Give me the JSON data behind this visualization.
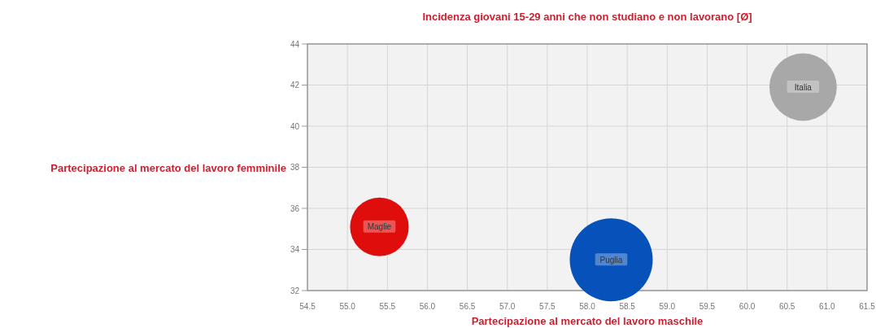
{
  "chart_data": {
    "type": "bubble",
    "title": "Incidenza giovani 15-29 anni che non studiano e non lavorano [Ø]",
    "xlabel": "Partecipazione al mercato del lavoro maschile",
    "ylabel": "Partecipazione al mercato del lavoro femminile",
    "xlim": [
      54.5,
      61.5
    ],
    "xticks": [
      54.5,
      {
        "value": 55,
        "label": "55.0"
      },
      55.5,
      {
        "value": 56,
        "label": "56.0"
      },
      56.5,
      {
        "value": 57,
        "label": "57.0"
      },
      57.5,
      {
        "value": 58,
        "label": "58.0"
      },
      58.5,
      {
        "value": 59,
        "label": "59.0"
      },
      59.5,
      {
        "value": 60,
        "label": "60.0"
      },
      60.5,
      {
        "value": 61,
        "label": "61.0"
      },
      61.5
    ],
    "ylim": [
      32,
      44
    ],
    "yticks": [
      32,
      34,
      36,
      38,
      40,
      42,
      44
    ],
    "grid": true,
    "series": [
      {
        "name": "Maglie",
        "color": "#e00d0d",
        "x": [
          55.4
        ],
        "values": [
          35.1
        ],
        "sizes": [
          0.5
        ]
      },
      {
        "name": "Puglia",
        "color": "#0652ba",
        "x": [
          58.3
        ],
        "values": [
          33.5
        ],
        "sizes": [
          1
        ]
      },
      {
        "name": "Italia",
        "color": "#a8a8a8",
        "x": [
          60.7
        ],
        "values": [
          41.9
        ],
        "sizes": [
          0.66
        ]
      }
    ]
  }
}
